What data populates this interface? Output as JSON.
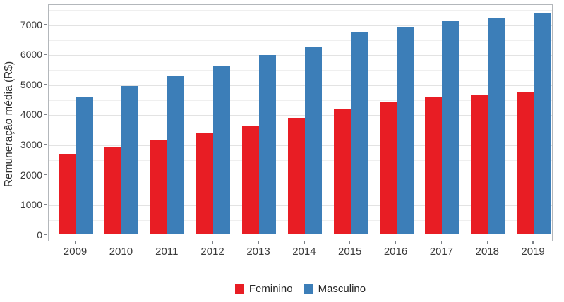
{
  "chart_data": {
    "type": "bar",
    "title": "",
    "xlabel": "",
    "ylabel": "Remuneração média (R$)",
    "categories": [
      "2009",
      "2010",
      "2011",
      "2012",
      "2013",
      "2014",
      "2015",
      "2016",
      "2017",
      "2018",
      "2019"
    ],
    "series": [
      {
        "name": "Feminino",
        "color": "#e81d24",
        "values": [
          2670,
          2900,
          3140,
          3380,
          3610,
          3860,
          4170,
          4380,
          4540,
          4610,
          4720
        ]
      },
      {
        "name": "Masculino",
        "color": "#3c7eb8",
        "values": [
          4570,
          4920,
          5250,
          5610,
          5960,
          6240,
          6710,
          6880,
          7070,
          7180,
          7330
        ]
      }
    ],
    "ylim": [
      0,
      7670
    ],
    "y_ticks": [
      0,
      1000,
      2000,
      3000,
      4000,
      5000,
      6000,
      7000
    ],
    "y_tick_labels": [
      "0",
      "1000",
      "2000",
      "3000",
      "4000",
      "5000",
      "6000",
      "7000"
    ],
    "y_minor_step": 500,
    "grid": "major and minor horizontal gridlines",
    "legend_position": "bottom center"
  },
  "legend": {
    "items": [
      {
        "label": "Feminino",
        "color": "#e81d24"
      },
      {
        "label": "Masculino",
        "color": "#3c7eb8"
      }
    ]
  }
}
